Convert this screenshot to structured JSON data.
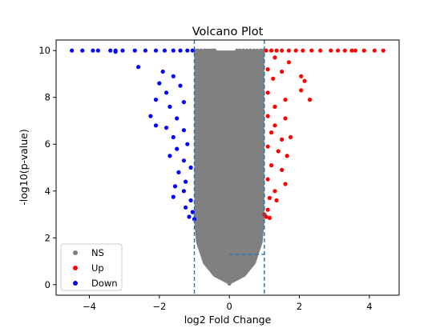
{
  "chart_data": {
    "type": "scatter",
    "title": "Volcano Plot",
    "xlabel": "log2 Fold Change",
    "ylabel": "-log10(p-value)",
    "xlim": [
      -4.95,
      4.85
    ],
    "ylim": [
      -0.45,
      10.45
    ],
    "x_ticks": [
      -4,
      -2,
      0,
      2,
      4
    ],
    "y_ticks": [
      0,
      2,
      4,
      6,
      8,
      10
    ],
    "x_tick_labels": [
      "−4",
      "−2",
      "0",
      "2",
      "4"
    ],
    "y_tick_labels": [
      "0",
      "2",
      "4",
      "6",
      "8",
      "10"
    ],
    "grid": false,
    "legend_position": "lower-left",
    "threshold_lines": {
      "fold_change_cutoffs": [
        -1,
        1
      ],
      "pvalue_cutoff": 1.3,
      "pvalue_segment_x": [
        0,
        1
      ],
      "color": "#1f77b4",
      "style": "dashed"
    },
    "series": [
      {
        "name": "NS",
        "color": "#808080",
        "points": [
          [
            -0.98,
            10
          ],
          [
            -0.9,
            10
          ],
          [
            -0.8,
            10
          ],
          [
            -0.7,
            10
          ],
          [
            -0.62,
            10
          ],
          [
            -0.55,
            10
          ],
          [
            -0.48,
            10
          ],
          [
            -0.42,
            10
          ],
          [
            0.22,
            10
          ],
          [
            0.3,
            10
          ],
          [
            0.4,
            10
          ],
          [
            0.5,
            10
          ],
          [
            0.6,
            10
          ],
          [
            0.7,
            10
          ],
          [
            0.8,
            10
          ],
          [
            0.9,
            10
          ],
          [
            0.98,
            10
          ],
          [
            -0.95,
            9
          ],
          [
            -0.8,
            9
          ],
          [
            -0.6,
            9
          ],
          [
            -0.45,
            9
          ],
          [
            0.4,
            9
          ],
          [
            0.55,
            9
          ],
          [
            0.75,
            9
          ],
          [
            0.95,
            9
          ],
          [
            -0.9,
            7
          ],
          [
            -0.7,
            7
          ],
          [
            -0.45,
            7
          ],
          [
            0.35,
            7
          ],
          [
            0.55,
            7
          ],
          [
            0.85,
            7
          ],
          [
            -0.8,
            5
          ],
          [
            -0.5,
            5
          ],
          [
            -0.3,
            5
          ],
          [
            0.3,
            5
          ],
          [
            0.5,
            5
          ],
          [
            0.8,
            5
          ],
          [
            -0.95,
            3
          ],
          [
            -0.6,
            3
          ],
          [
            -0.3,
            3
          ],
          [
            0.3,
            3
          ],
          [
            0.6,
            3
          ],
          [
            0.95,
            3
          ],
          [
            -0.9,
            2
          ],
          [
            -0.5,
            2
          ],
          [
            -0.2,
            2
          ],
          [
            0.2,
            2
          ],
          [
            0.5,
            2
          ],
          [
            0.9,
            2
          ],
          [
            -0.7,
            1
          ],
          [
            -0.3,
            1
          ],
          [
            0,
            1
          ],
          [
            0.3,
            1
          ],
          [
            0.7,
            1
          ],
          [
            -0.2,
            0.3
          ],
          [
            0,
            0.05
          ],
          [
            0.2,
            0.3
          ]
        ]
      },
      {
        "name": "Up",
        "color": "#ff0000",
        "points": [
          [
            1.05,
            10
          ],
          [
            1.2,
            10
          ],
          [
            1.35,
            10
          ],
          [
            1.5,
            10
          ],
          [
            1.7,
            10
          ],
          [
            1.9,
            10
          ],
          [
            2.1,
            10
          ],
          [
            2.35,
            10
          ],
          [
            2.6,
            10
          ],
          [
            2.9,
            10
          ],
          [
            3.1,
            10
          ],
          [
            3.3,
            10
          ],
          [
            3.5,
            10
          ],
          [
            3.6,
            10
          ],
          [
            3.85,
            10
          ],
          [
            4.15,
            10
          ],
          [
            4.4,
            10
          ],
          [
            1.3,
            9.7
          ],
          [
            1.7,
            9.5
          ],
          [
            1.1,
            9.2
          ],
          [
            1.5,
            9.1
          ],
          [
            2.05,
            8.9
          ],
          [
            1.25,
            8.8
          ],
          [
            2.15,
            8.7
          ],
          [
            2.05,
            8.3
          ],
          [
            1.1,
            8.2
          ],
          [
            1.6,
            7.9
          ],
          [
            2.3,
            7.9
          ],
          [
            1.3,
            7.6
          ],
          [
            1.1,
            7.2
          ],
          [
            1.6,
            7.1
          ],
          [
            1.3,
            6.8
          ],
          [
            1.2,
            6.5
          ],
          [
            1.75,
            6.3
          ],
          [
            1.5,
            6.2
          ],
          [
            1.1,
            5.9
          ],
          [
            1.4,
            5.7
          ],
          [
            1.65,
            5.5
          ],
          [
            1.2,
            5.1
          ],
          [
            1.5,
            4.9
          ],
          [
            1.1,
            4.5
          ],
          [
            1.6,
            4.3
          ],
          [
            1.3,
            4.0
          ],
          [
            1.15,
            3.7
          ],
          [
            1.35,
            3.6
          ],
          [
            1.1,
            3.2
          ],
          [
            1.0,
            3.0
          ],
          [
            1.05,
            2.9
          ],
          [
            1.15,
            2.85
          ]
        ]
      },
      {
        "name": "Down",
        "color": "#0000ff",
        "points": [
          [
            -4.5,
            10
          ],
          [
            -4.2,
            10
          ],
          [
            -3.9,
            10
          ],
          [
            -3.75,
            10
          ],
          [
            -3.4,
            10
          ],
          [
            -3.25,
            10
          ],
          [
            -3.05,
            10
          ],
          [
            -2.7,
            10
          ],
          [
            -2.4,
            10
          ],
          [
            -2.1,
            10
          ],
          [
            -1.85,
            10
          ],
          [
            -1.6,
            10
          ],
          [
            -1.4,
            10
          ],
          [
            -1.2,
            10
          ],
          [
            -1.05,
            10
          ],
          [
            -3.25,
            9.95
          ],
          [
            -2.6,
            9.3
          ],
          [
            -1.9,
            9.1
          ],
          [
            -1.6,
            8.9
          ],
          [
            -2.0,
            8.6
          ],
          [
            -1.4,
            8.5
          ],
          [
            -1.8,
            8.2
          ],
          [
            -2.1,
            7.9
          ],
          [
            -1.3,
            7.8
          ],
          [
            -1.7,
            7.6
          ],
          [
            -2.25,
            7.2
          ],
          [
            -1.5,
            7.1
          ],
          [
            -2.1,
            6.8
          ],
          [
            -1.8,
            6.7
          ],
          [
            -1.3,
            6.6
          ],
          [
            -1.6,
            6.3
          ],
          [
            -1.2,
            6.0
          ],
          [
            -1.5,
            5.8
          ],
          [
            -1.7,
            5.5
          ],
          [
            -1.3,
            5.3
          ],
          [
            -1.1,
            5.0
          ],
          [
            -1.45,
            4.8
          ],
          [
            -1.25,
            4.4
          ],
          [
            -1.55,
            4.2
          ],
          [
            -1.3,
            4.0
          ],
          [
            -1.6,
            3.75
          ],
          [
            -1.1,
            3.6
          ],
          [
            -1.25,
            3.3
          ],
          [
            -1.05,
            3.1
          ],
          [
            -1.15,
            2.9
          ],
          [
            -1.0,
            2.8
          ]
        ]
      }
    ]
  }
}
